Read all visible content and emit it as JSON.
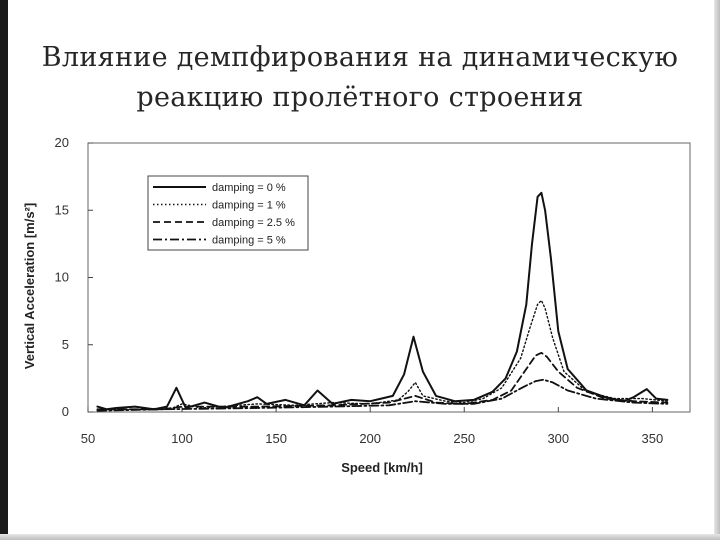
{
  "slide": {
    "title_line1": "Влияние демпфирования на динамическую",
    "title_line2": "реакцию пролётного строения"
  },
  "chart_data": {
    "type": "line",
    "title": "",
    "xlabel": "Speed [km/h]",
    "ylabel": "Vertical Acceleration [m/s²]",
    "xlim": [
      50,
      370
    ],
    "ylim": [
      0,
      20
    ],
    "xticks": [
      50,
      100,
      150,
      200,
      250,
      300,
      350
    ],
    "yticks": [
      0,
      5,
      10,
      15,
      20
    ],
    "grid": false,
    "legend_position": "top-left",
    "series": [
      {
        "name": "damping = 0 %",
        "style": "solid",
        "x": [
          55,
          60,
          65,
          75,
          85,
          92,
          97,
          102,
          112,
          122,
          135,
          140,
          145,
          155,
          165,
          172,
          180,
          190,
          200,
          212,
          218,
          223,
          228,
          235,
          245,
          255,
          265,
          272,
          278,
          283,
          286,
          289,
          291,
          293,
          296,
          300,
          305,
          315,
          325,
          335,
          340,
          347,
          352,
          358
        ],
        "y": [
          0.4,
          0.2,
          0.3,
          0.4,
          0.2,
          0.4,
          1.8,
          0.3,
          0.7,
          0.3,
          0.8,
          1.1,
          0.6,
          0.9,
          0.5,
          1.6,
          0.6,
          0.9,
          0.8,
          1.2,
          2.8,
          5.6,
          3.0,
          1.2,
          0.8,
          0.9,
          1.5,
          2.5,
          4.5,
          8.0,
          12.5,
          16.0,
          16.3,
          15.0,
          11.5,
          6.0,
          3.2,
          1.6,
          1.1,
          0.8,
          1.1,
          1.7,
          1.0,
          0.9
        ]
      },
      {
        "name": "damping = 1 %",
        "style": "dotted",
        "x": [
          55,
          75,
          95,
          100,
          110,
          140,
          160,
          180,
          200,
          215,
          220,
          224,
          228,
          240,
          250,
          260,
          270,
          280,
          285,
          289,
          291,
          293,
          297,
          303,
          315,
          330,
          345,
          358
        ],
        "y": [
          0.2,
          0.2,
          0.3,
          0.6,
          0.3,
          0.6,
          0.5,
          0.7,
          0.6,
          0.9,
          1.5,
          2.2,
          1.2,
          0.8,
          0.7,
          1.0,
          1.8,
          4.0,
          6.3,
          8.0,
          8.3,
          7.7,
          5.5,
          3.0,
          1.5,
          1.0,
          1.0,
          0.8
        ]
      },
      {
        "name": "damping = 2.5 %",
        "style": "dashed",
        "x": [
          55,
          90,
          100,
          140,
          180,
          210,
          224,
          235,
          250,
          265,
          275,
          283,
          288,
          291,
          294,
          300,
          310,
          325,
          340,
          358
        ],
        "y": [
          0.2,
          0.2,
          0.4,
          0.4,
          0.5,
          0.7,
          1.2,
          0.7,
          0.6,
          0.9,
          1.6,
          3.2,
          4.2,
          4.4,
          4.1,
          3.0,
          1.8,
          1.0,
          0.8,
          0.7
        ]
      },
      {
        "name": "damping = 5 %",
        "style": "dash-dot",
        "x": [
          55,
          90,
          140,
          180,
          210,
          224,
          240,
          255,
          270,
          282,
          288,
          292,
          297,
          305,
          320,
          340,
          358
        ],
        "y": [
          0.1,
          0.2,
          0.3,
          0.4,
          0.5,
          0.8,
          0.6,
          0.6,
          1.0,
          1.9,
          2.3,
          2.4,
          2.2,
          1.6,
          1.0,
          0.7,
          0.6
        ]
      }
    ]
  }
}
